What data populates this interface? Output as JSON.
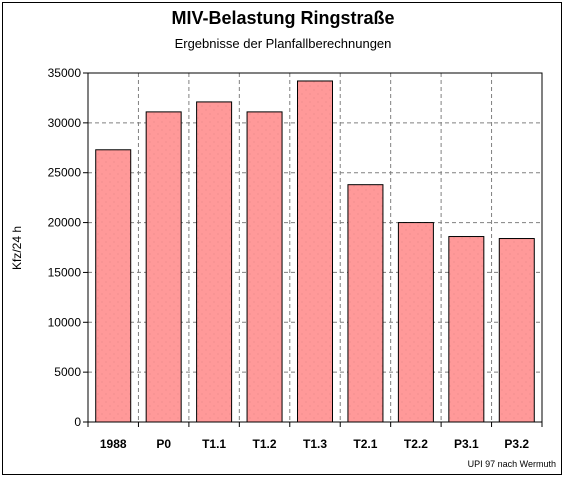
{
  "chart_data": {
    "type": "bar",
    "title": "MIV-Belastung Ringstraße",
    "subtitle": "Ergebnisse der Planfallberechnungen",
    "ylabel": "Kfz/24 h",
    "xlabel": "",
    "categories": [
      "1988",
      "P0",
      "T1.1",
      "T1.2",
      "T1.3",
      "T2.1",
      "T2.2",
      "P3.1",
      "P3.2"
    ],
    "values": [
      27300,
      31100,
      32100,
      31100,
      34200,
      23800,
      20000,
      18600,
      18400
    ],
    "ylim": [
      0,
      35000
    ],
    "yticks": [
      "0",
      "5000",
      "10000",
      "15000",
      "20000",
      "25000",
      "30000",
      "35000"
    ],
    "grid": true,
    "bar_color": "#ff9999",
    "source_note": "UPI 97 nach Wermuth"
  }
}
